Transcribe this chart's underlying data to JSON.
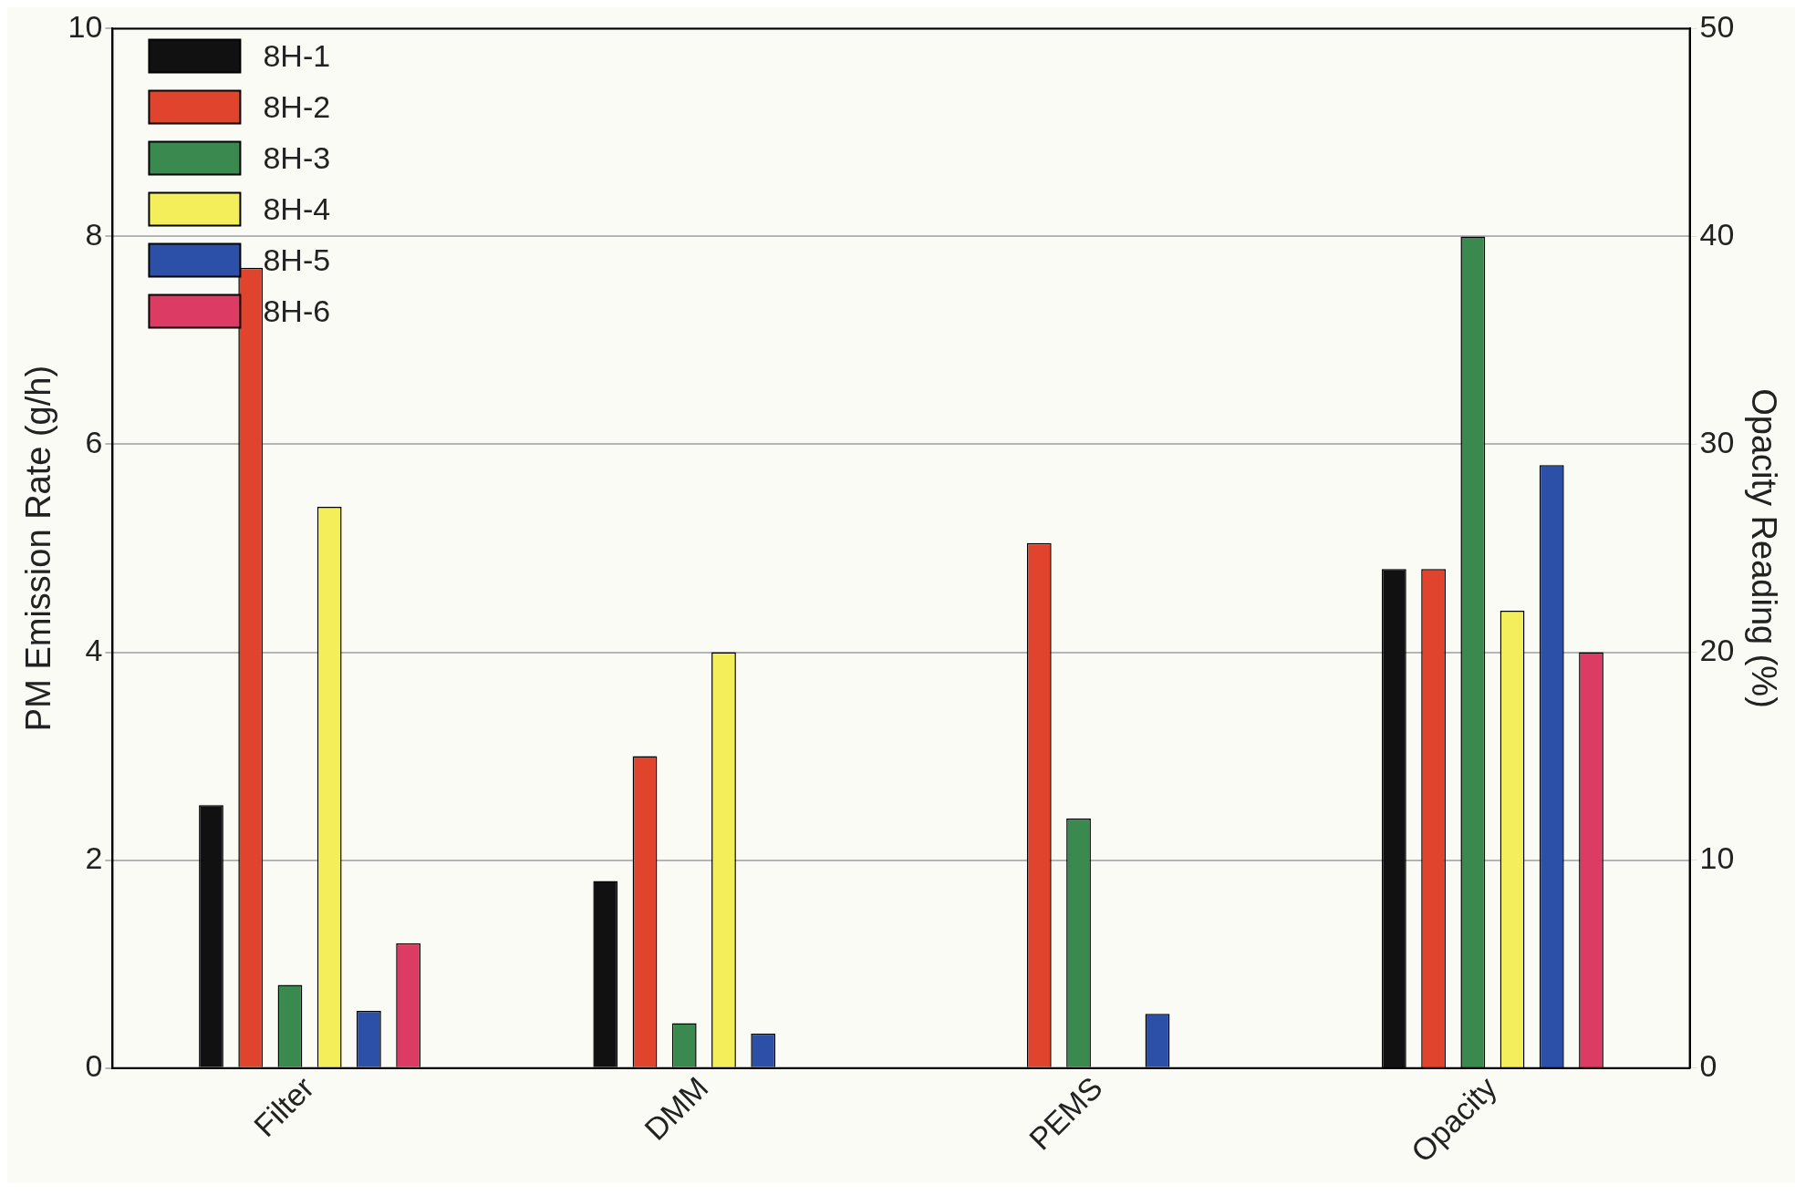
{
  "chart_data": {
    "type": "bar",
    "xlabel": null,
    "ylabel": "PM Emission Rate (g/h)",
    "y2label": "Opacity Reading (%)",
    "categories": [
      "Filter",
      "DMM",
      "PEMS",
      "Opacity"
    ],
    "series": [
      {
        "name": "8H-1",
        "color": "#111111",
        "values": [
          2.53,
          1.8,
          null,
          null
        ]
      },
      {
        "name": "8H-2",
        "color": "#e0442c",
        "values": [
          7.7,
          3.0,
          5.05,
          null
        ]
      },
      {
        "name": "8H-3",
        "color": "#3a8a50",
        "values": [
          0.8,
          0.43,
          2.4,
          null
        ]
      },
      {
        "name": "8H-4",
        "color": "#f4ee5a",
        "values": [
          5.4,
          4.0,
          null,
          null
        ]
      },
      {
        "name": "8H-5",
        "color": "#2c50a8",
        "values": [
          0.55,
          0.33,
          0.52,
          null
        ]
      },
      {
        "name": "8H-6",
        "color": "#dc3c64",
        "values": [
          1.2,
          null,
          null,
          null
        ]
      },
      {
        "axis": "y2",
        "color": "#111111",
        "values": [
          null,
          null,
          null,
          24
        ]
      },
      {
        "axis": "y2",
        "color": "#e0442c",
        "values": [
          null,
          null,
          null,
          24
        ]
      },
      {
        "axis": "y2",
        "color": "#3a8a50",
        "values": [
          null,
          null,
          null,
          40
        ]
      },
      {
        "axis": "y2",
        "color": "#f4ee5a",
        "values": [
          null,
          null,
          null,
          22
        ]
      },
      {
        "axis": "y2",
        "color": "#2c50a8",
        "values": [
          null,
          null,
          null,
          29
        ]
      },
      {
        "axis": "y2",
        "color": "#dc3c64",
        "values": [
          null,
          null,
          null,
          20
        ]
      }
    ],
    "ylim": [
      0,
      10
    ],
    "yticks": [
      0,
      2,
      4,
      6,
      8,
      10
    ],
    "y2lim": [
      0,
      50
    ],
    "y2ticks": [
      0,
      10,
      20,
      30,
      40,
      50
    ],
    "grid": "y",
    "legend": "top left"
  }
}
